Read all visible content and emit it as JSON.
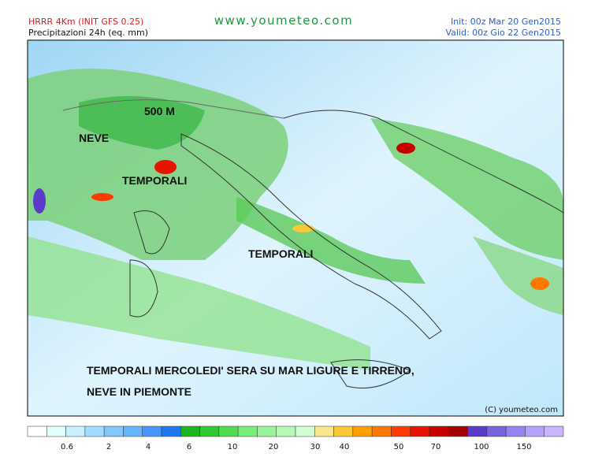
{
  "header": {
    "model": "HRRR 4Km (INIT GFS 0.25)",
    "field": "Precipitazioni 24h (eq. mm)",
    "site": "www.youmeteo.com",
    "init": "Init: 00z Mar 20 Gen2015",
    "valid": "Valid: 00z Gio 22 Gen2015"
  },
  "annotations": [
    "500 M",
    "NEVE",
    "TEMPORALI",
    "TEMPORALI",
    "TEMPORALI MERCOLEDI' SERA SU MAR LIGURE E TIRRENO,",
    "NEVE IN PIEMONTE"
  ],
  "copyright": "(C) youmeteo.com",
  "legend": {
    "colors": [
      "#ffffff",
      "#e1ffff",
      "#c8f0ff",
      "#a0dcff",
      "#82c8ff",
      "#64b4ff",
      "#4696ff",
      "#1e78f0",
      "#1eb41e",
      "#32c832",
      "#50dc50",
      "#78f078",
      "#96f596",
      "#b4fab4",
      "#d2ffd2",
      "#fae68c",
      "#fac832",
      "#ffa000",
      "#ff7800",
      "#ff3c00",
      "#e61400",
      "#c80000",
      "#a00000",
      "#5a3cc8",
      "#7864dc",
      "#9682f0",
      "#b4a0ff",
      "#c8b4ff"
    ],
    "labels": [
      "0.6",
      "2",
      "4",
      "6",
      "10",
      "20",
      "30",
      "40",
      "50",
      "70",
      "100",
      "150"
    ]
  }
}
